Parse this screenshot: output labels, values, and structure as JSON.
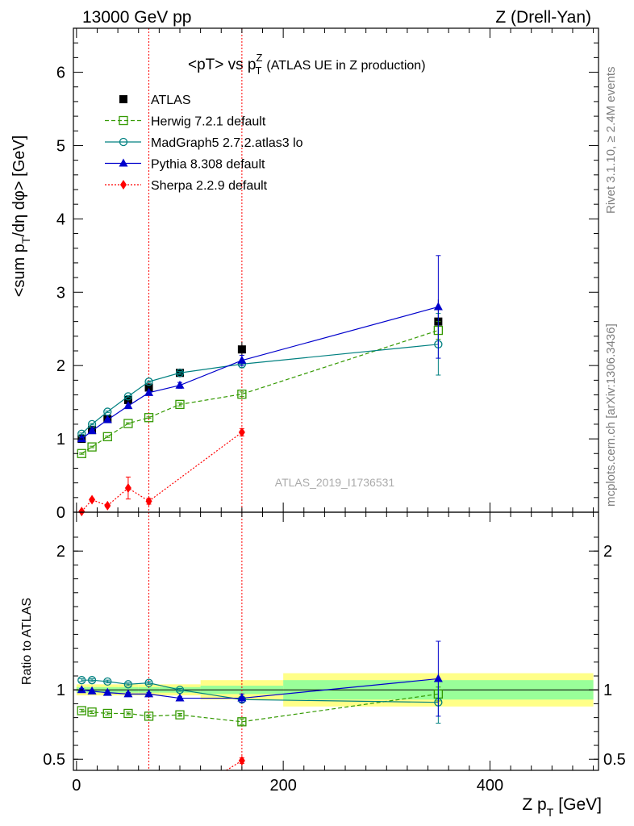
{
  "header": {
    "left": "13000 GeV pp",
    "right": "Z (Drell-Yan)"
  },
  "side_labels": {
    "rivet": "Rivet 3.1.10, ≥ 2.4M events",
    "mcplots": "mcplots.cern.ch [arXiv:1306.3436]"
  },
  "watermark": "ATLAS_2019_I1736531",
  "chart_data": [
    {
      "type": "line",
      "panel": "main",
      "title_main": "<pT> vs p",
      "title_sup": "Z",
      "title_sub": "T",
      "title_rest": "(ATLAS UE in Z production)",
      "ylabel": "<sum p",
      "ylabel_sub": "T",
      "ylabel_rest": "/dη dφ> [GeV]",
      "xlim": [
        -3,
        505
      ],
      "ylim": [
        0,
        6.6
      ],
      "yticks": [
        0,
        1,
        2,
        3,
        4,
        5,
        6
      ],
      "ytick_labels": [
        "0",
        "1",
        "2",
        "3",
        "4",
        "5",
        "6"
      ],
      "vlines": [
        70,
        160
      ],
      "series": [
        {
          "name": "ATLAS",
          "color": "#000000",
          "marker": "square",
          "line": "none",
          "x": [
            5,
            15,
            30,
            50,
            70,
            100,
            160,
            350
          ],
          "y": [
            1.0,
            1.12,
            1.27,
            1.53,
            1.7,
            1.9,
            2.22,
            2.6
          ],
          "band_x": [
            [
              0,
              10
            ],
            [
              10,
              20
            ],
            [
              20,
              40
            ],
            [
              40,
              60
            ],
            [
              60,
              80
            ],
            [
              80,
              120
            ],
            [
              120,
              200
            ],
            [
              200,
              500
            ]
          ],
          "err_stat": [
            0.02,
            0.02,
            0.02,
            0.02,
            0.02,
            0.02,
            0.03,
            0.06
          ],
          "err_tot": [
            0.04,
            0.04,
            0.04,
            0.05,
            0.05,
            0.06,
            0.1,
            0.3
          ]
        },
        {
          "name": "Herwig 7.2.1 default",
          "color": "#339900",
          "marker": "open-square",
          "line": "dashed",
          "x": [
            5,
            15,
            30,
            50,
            70,
            100,
            160,
            350
          ],
          "y": [
            0.8,
            0.89,
            1.03,
            1.21,
            1.29,
            1.47,
            1.61,
            2.48
          ],
          "err": [
            0.01,
            0.01,
            0.01,
            0.01,
            0.01,
            0.02,
            0.03,
            0.12
          ]
        },
        {
          "name": "MadGraph5 2.7.2.atlas3 lo",
          "color": "#008080",
          "marker": "open-circle",
          "line": "solid",
          "x": [
            5,
            15,
            30,
            50,
            70,
            100,
            160,
            350
          ],
          "y": [
            1.07,
            1.2,
            1.37,
            1.58,
            1.78,
            1.9,
            2.02,
            2.29
          ],
          "err": [
            0.01,
            0.01,
            0.01,
            0.01,
            0.01,
            0.02,
            0.05,
            0.42
          ]
        },
        {
          "name": "Pythia 8.308 default",
          "color": "#0000cc",
          "marker": "filled-triangle",
          "line": "solid",
          "x": [
            5,
            15,
            30,
            50,
            70,
            100,
            160,
            350
          ],
          "y": [
            1.0,
            1.11,
            1.26,
            1.45,
            1.63,
            1.73,
            2.07,
            2.8
          ],
          "err": [
            0.01,
            0.01,
            0.01,
            0.01,
            0.02,
            0.04,
            0.07,
            0.7
          ]
        },
        {
          "name": "Sherpa 2.2.9 default",
          "color": "#ff0000",
          "marker": "filled-diamond",
          "line": "dotted",
          "x": [
            5,
            15,
            30,
            50,
            70,
            160
          ],
          "y": [
            0.01,
            0.17,
            0.09,
            0.33,
            0.15,
            1.09
          ],
          "err": [
            0.01,
            0.02,
            0.02,
            0.15,
            0.04,
            0.05
          ]
        }
      ]
    },
    {
      "type": "line",
      "panel": "ratio",
      "ylabel": "Ratio to ATLAS",
      "xlabel": "Z p",
      "xlabel_sub": "T",
      "xlabel_rest": "[GeV]",
      "xlim": [
        -3,
        505
      ],
      "ylim": [
        0.42,
        2.28
      ],
      "yticks": [
        0.5,
        1,
        2
      ],
      "ytick_labels": [
        "0.5",
        "1",
        "2"
      ],
      "xticks": [
        0,
        200,
        400
      ],
      "xtick_labels": [
        "0",
        "200",
        "400"
      ],
      "bands": [
        {
          "x": [
            0,
            10
          ],
          "stat": 0.02,
          "tot": 0.04
        },
        {
          "x": [
            10,
            20
          ],
          "stat": 0.02,
          "tot": 0.04
        },
        {
          "x": [
            20,
            40
          ],
          "stat": 0.02,
          "tot": 0.04
        },
        {
          "x": [
            40,
            60
          ],
          "stat": 0.02,
          "tot": 0.04
        },
        {
          "x": [
            60,
            80
          ],
          "stat": 0.02,
          "tot": 0.04
        },
        {
          "x": [
            80,
            120
          ],
          "stat": 0.02,
          "tot": 0.04
        },
        {
          "x": [
            120,
            200
          ],
          "stat": 0.03,
          "tot": 0.07
        },
        {
          "x": [
            200,
            500
          ],
          "stat": 0.07,
          "tot": 0.12
        }
      ],
      "series": [
        {
          "name": "Herwig 7.2.1 default",
          "color": "#339900",
          "marker": "open-square",
          "line": "dashed",
          "x": [
            5,
            15,
            30,
            50,
            70,
            100,
            160,
            350
          ],
          "y": [
            0.85,
            0.84,
            0.83,
            0.83,
            0.81,
            0.82,
            0.77,
            0.97
          ],
          "err": [
            0.01,
            0.01,
            0.01,
            0.01,
            0.01,
            0.01,
            0.02,
            0.05
          ]
        },
        {
          "name": "MadGraph5 2.7.2.atlas3 lo",
          "color": "#008080",
          "marker": "open-circle",
          "line": "solid",
          "x": [
            5,
            15,
            30,
            50,
            70,
            100,
            160,
            350
          ],
          "y": [
            1.07,
            1.07,
            1.06,
            1.04,
            1.05,
            1.0,
            0.93,
            0.91
          ],
          "err": [
            0.01,
            0.01,
            0.01,
            0.01,
            0.01,
            0.01,
            0.02,
            0.15
          ]
        },
        {
          "name": "Pythia 8.308 default",
          "color": "#0000cc",
          "marker": "filled-triangle",
          "line": "solid",
          "x": [
            5,
            15,
            30,
            50,
            70,
            100,
            160,
            350
          ],
          "y": [
            1.0,
            0.99,
            0.98,
            0.97,
            0.97,
            0.94,
            0.94,
            1.08
          ],
          "err": [
            0.01,
            0.01,
            0.01,
            0.01,
            0.01,
            0.01,
            0.03,
            0.27
          ]
        },
        {
          "name": "Sherpa 2.2.9 default",
          "color": "#ff0000",
          "marker": "filled-diamond",
          "line": "dotted",
          "x": [
            145,
            160
          ],
          "y": [
            0.38,
            0.49
          ],
          "err": [
            0,
            0.02
          ]
        }
      ]
    }
  ]
}
